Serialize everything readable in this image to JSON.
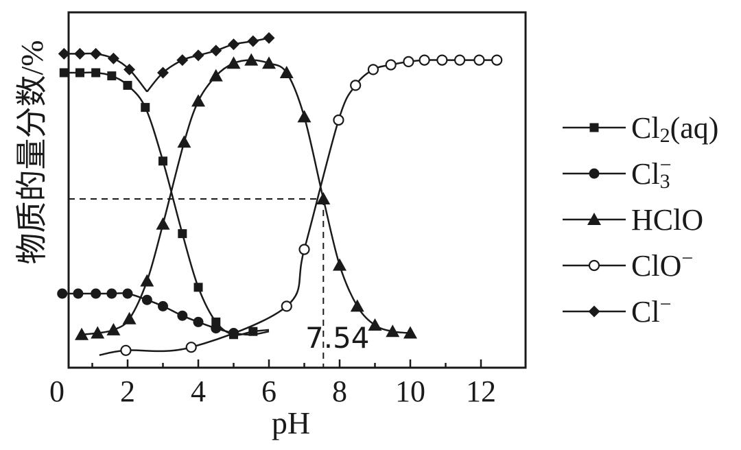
{
  "chart_data": {
    "type": "line",
    "xlabel": "pH",
    "ylabel": "物质的量分数/%",
    "xlim": [
      0,
      13
    ],
    "ylim": [
      0,
      100
    ],
    "xticks": [
      "0",
      "2",
      "4",
      "6",
      "8",
      "10",
      "12"
    ],
    "grid": false,
    "legend_position": "right",
    "annotations": [
      {
        "text": "7.54",
        "x": 7.54
      }
    ],
    "reference_lines": {
      "horizontal_y": 50,
      "vertical_x": 7.54
    },
    "series": [
      {
        "name": "Cl2(aq)",
        "label_main": "Cl",
        "label_sub": "2",
        "label_tail": "(aq)",
        "label_sup": "",
        "marker": "square",
        "x": [
          0.2,
          0.65,
          1.1,
          1.55,
          2.0,
          2.5,
          3.0,
          3.55,
          4.0,
          4.5,
          5.0,
          5.55
        ],
        "y": [
          90,
          90,
          90,
          89,
          86,
          79,
          62,
          39,
          22,
          11,
          7,
          8
        ]
      },
      {
        "name": "Cl3-",
        "label_main": "Cl",
        "label_sub": "3",
        "label_tail": "",
        "label_sup": "−",
        "marker": "circle",
        "x": [
          0.15,
          0.6,
          1.1,
          1.55,
          2.0,
          2.55,
          3.0,
          3.55,
          4.0,
          4.5,
          5.0
        ],
        "y": [
          20,
          20,
          20,
          20,
          20,
          18,
          16,
          13,
          11,
          9,
          7.5
        ]
      },
      {
        "name": "HClO",
        "label_main": "HClO",
        "label_sub": "",
        "label_tail": "",
        "label_sup": "",
        "marker": "triangle",
        "x": [
          0.7,
          1.15,
          1.6,
          2.05,
          2.55,
          3.0,
          3.6,
          4.0,
          4.5,
          5.0,
          5.5,
          6.0,
          6.5,
          7.0,
          7.54,
          8.0,
          8.5,
          9.0,
          9.5,
          10.0
        ],
        "y": [
          7,
          7.5,
          8.5,
          12,
          24,
          42,
          68,
          81,
          89,
          93,
          94,
          93,
          90,
          76,
          50,
          29,
          16,
          10,
          8,
          7.5
        ]
      },
      {
        "name": "ClO-",
        "label_main": "ClO",
        "label_sub": "",
        "label_tail": "",
        "label_sup": "−",
        "marker": "open-circle",
        "x": [
          1.95,
          3.8,
          6.5,
          7.0,
          7.97,
          8.45,
          8.95,
          9.45,
          9.95,
          10.4,
          10.9,
          11.4,
          11.95,
          12.45
        ],
        "y": [
          2,
          3,
          16,
          34,
          75,
          86,
          91,
          92.5,
          93.5,
          94,
          94,
          94,
          94,
          94
        ]
      },
      {
        "name": "Cl-",
        "label_main": "Cl",
        "label_sub": "",
        "label_tail": "",
        "label_sup": "−",
        "marker": "diamond",
        "x": [
          0.2,
          0.65,
          1.1,
          1.6,
          2.05,
          2.55,
          3.0,
          3.55,
          4.0,
          4.5,
          5.0,
          5.55,
          6.0
        ],
        "y": [
          96,
          96,
          96,
          94.5,
          91,
          84,
          90,
          94,
          95.5,
          97,
          99,
          100,
          101
        ]
      }
    ]
  }
}
